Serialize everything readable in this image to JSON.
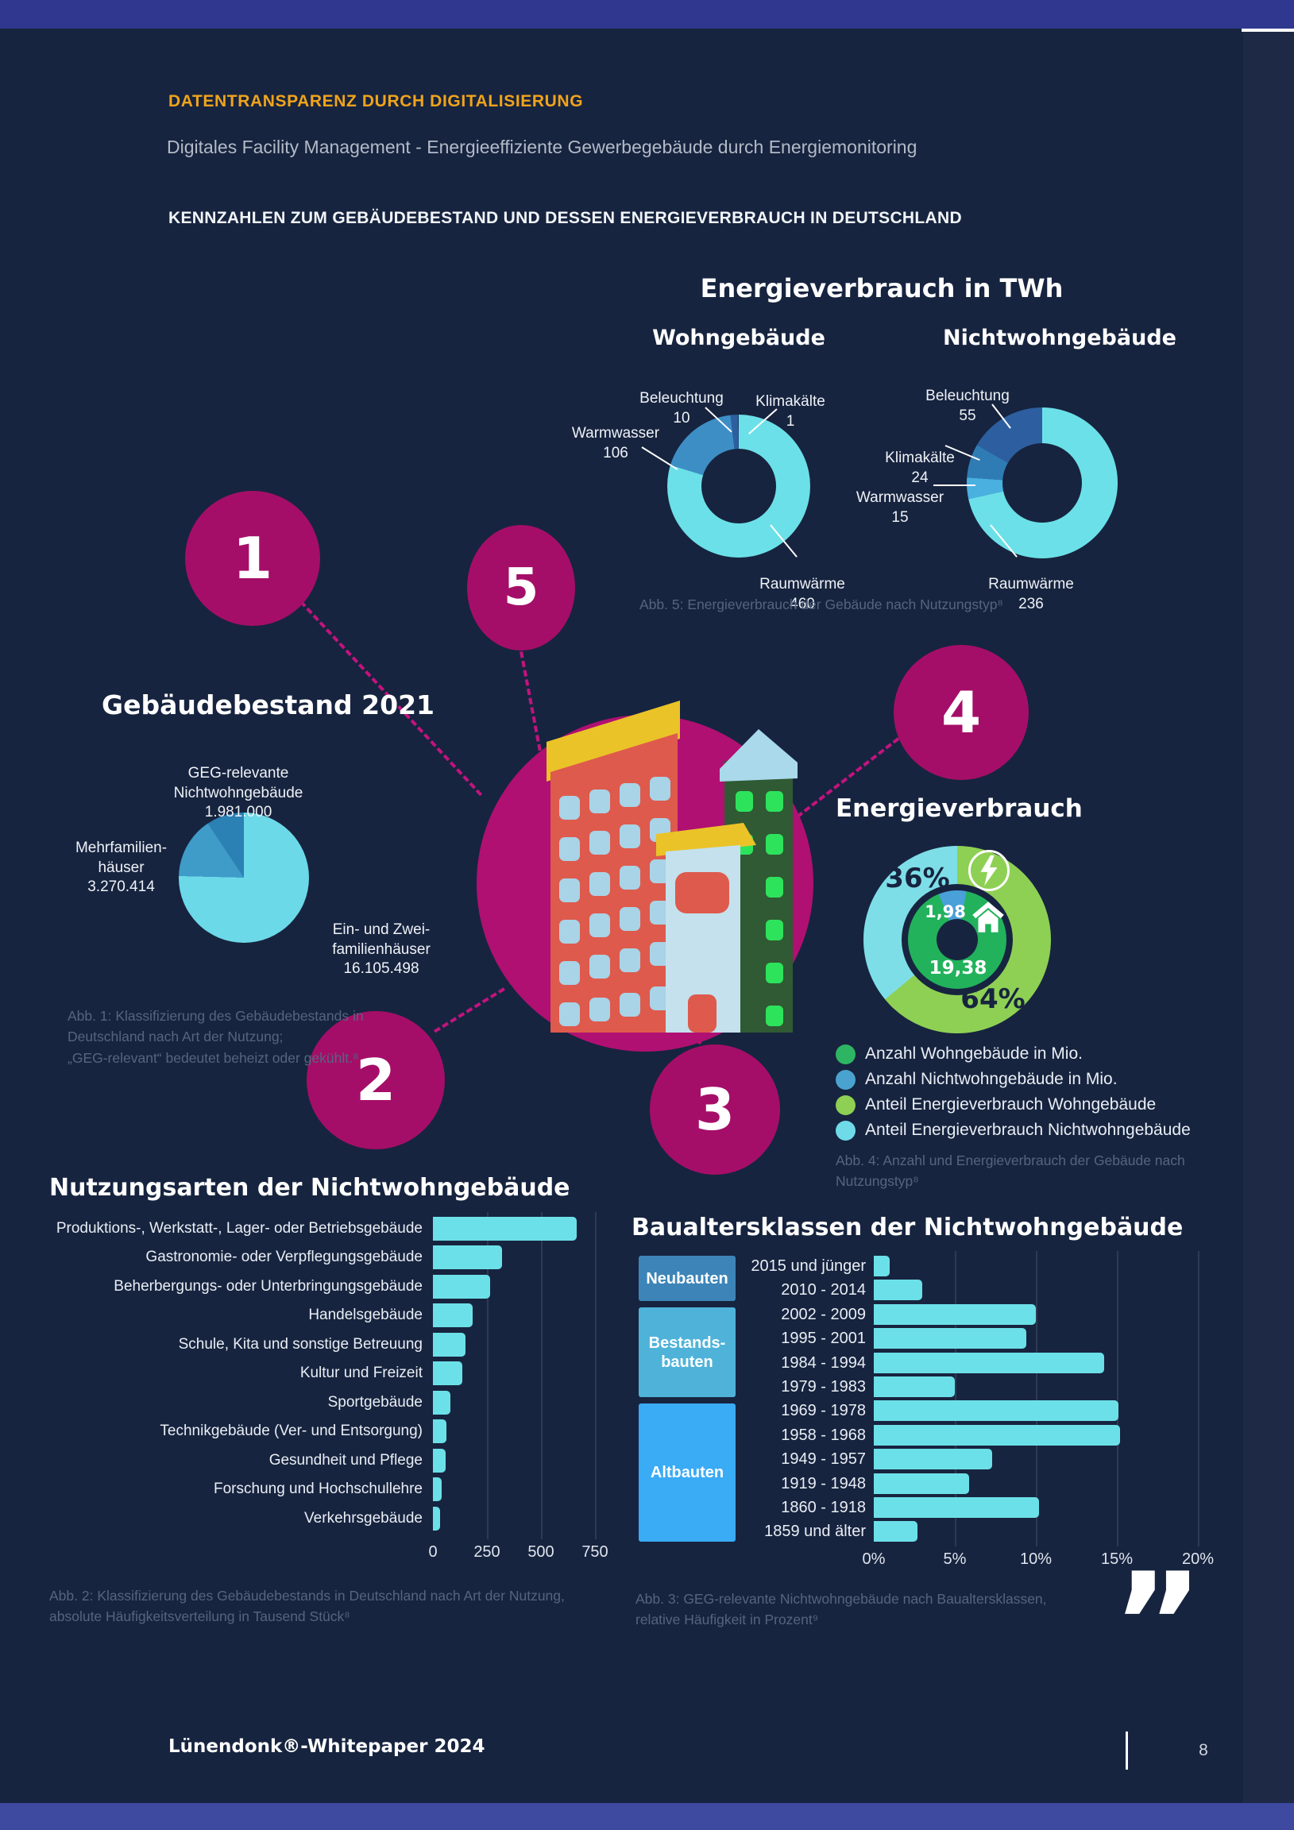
{
  "page": {
    "kicker": "DATENTRANSPARENZ DURCH DIGITALISIERUNG",
    "subtitle": "Digitales Facility Management - Energieeffiziente Gewerbegebäude durch Energiemonitoring",
    "section_title": "KENNZAHLEN ZUM GEBÄUDEBESTAND UND DESSEN ENERGIEVERBRAUCH IN DEUTSCHLAND",
    "quote_mark": "”",
    "footer": {
      "brand": "Lünendonk®-Whitepaper 2024",
      "page_number": "8"
    }
  },
  "markers": {
    "m1": "1",
    "m2": "2",
    "m3": "3",
    "m4": "4",
    "m5": "5"
  },
  "headings": {
    "energy_twh": "Energieverbrauch in TWh",
    "gebaeudebestand": "Gebäudebestand 2021",
    "energieverbrauch": "Energieverbrauch",
    "nutzungsarten": "Nutzungsarten der Nichtwohngebäude",
    "baualtersklassen": "Baualtersklassen der Nichtwohngebäude"
  },
  "captions": {
    "abb1": "Abb. 1: Klassifizierung des Gebäudebestands in\nDeutschland nach Art der Nutzung;\n„GEG-relevant“ bedeutet beheizt oder gekühlt.⁸",
    "abb2": "Abb. 2: Klassifizierung des Gebäudebestands in Deutschland nach Art der Nutzung,\nabsolute Häufigkeitsverteilung in Tausend Stück⁸",
    "abb3": "Abb. 3: GEG-relevante Nichtwohngebäude nach Baualtersklassen,\nrelative Häufigkeit in Prozent⁹",
    "abb4": "Abb. 4: Anzahl und Energieverbrauch der Gebäude nach\nNutzungstyp⁸",
    "abb5": "Abb. 5: Energieverbrauch der Gebäude nach Nutzungstyp⁸"
  },
  "chart_data": [
    {
      "id": "abb5-wohngebaeude",
      "type": "pie",
      "title": "Wohngebäude",
      "unit": "TWh",
      "categories": [
        "Raumwärme",
        "Warmwasser",
        "Beleuchtung",
        "Klimakälte"
      ],
      "values": [
        460,
        106,
        10,
        1
      ],
      "colors": [
        "#6ce0e8",
        "#3e8ec6",
        "#2d5fa0",
        "#1a3c66"
      ]
    },
    {
      "id": "abb5-nichtwohngebaeude",
      "type": "pie",
      "title": "Nichtwohngebäude",
      "unit": "TWh",
      "categories": [
        "Raumwärme",
        "Warmwasser",
        "Klimakälte",
        "Beleuchtung"
      ],
      "values": [
        236,
        15,
        24,
        55
      ],
      "colors": [
        "#6ce0e8",
        "#49b0e0",
        "#2f7cb5",
        "#2d5fa0"
      ]
    },
    {
      "id": "abb1-gebaeudebestand",
      "type": "pie",
      "title": "Gebäudebestand 2021",
      "categories": [
        "Ein- und Zweifamilienhäuser",
        "Mehrfamilienhäuser",
        "GEG-relevante Nichtwohngebäude"
      ],
      "categories_display": [
        "Ein- und Zwei-\nfamilienhäuser",
        "Mehrfamilien-\nhäuser",
        "GEG-relevante\nNichtwohngebäude"
      ],
      "values": [
        16105498,
        3270414,
        1981000
      ],
      "values_formatted": [
        "16.105.498",
        "3.270.414",
        "1.981.000"
      ],
      "colors": [
        "#6cd9e8",
        "#3f9bc8",
        "#2b80b4"
      ]
    },
    {
      "id": "abb4-energieverbrauch",
      "type": "pie",
      "title": "Energieverbrauch",
      "share_wohngebaeude": "64%",
      "share_nichtwohngebaeude": "36%",
      "anzahl_wohngebaeude_mio": "19,38",
      "anzahl_nichtwohngebaeude_mio": "1,98",
      "legend": [
        {
          "label": "Anzahl Wohngebäude in Mio.",
          "color": "#2eb563"
        },
        {
          "label": "Anzahl Nichtwohngebäude in Mio.",
          "color": "#4aa3cf"
        },
        {
          "label": "Anteil Energieverbrauch Wohngebäude",
          "color": "#8ed054"
        },
        {
          "label": "Anteil Energieverbrauch Nichtwohngebäude",
          "color": "#6fdbe8"
        }
      ]
    },
    {
      "id": "abb2-nutzungsarten",
      "type": "bar",
      "title": "Nutzungsarten der Nichtwohngebäude",
      "unit": "Tausend Stück",
      "xlim": [
        0,
        750
      ],
      "ticks": [
        "0",
        "250",
        "500",
        "750"
      ],
      "categories": [
        "Produktions-, Werkstatt-, Lager- oder Betriebsgebäude",
        "Gastronomie- oder Verpflegungsgebäude",
        "Beherbergungs- oder Unterbringungsgebäude",
        "Handelsgebäude",
        "Schule, Kita und sonstige Betreuung",
        "Kultur und Freizeit",
        "Sportgebäude",
        "Technikgebäude (Ver- und Entsorgung)",
        "Gesundheit und Pflege",
        "Forschung und Hochschullehre",
        "Verkehrsgebäude"
      ],
      "values": [
        665,
        320,
        265,
        185,
        150,
        135,
        80,
        62,
        60,
        40,
        33
      ]
    },
    {
      "id": "abb3-baualtersklassen",
      "type": "bar",
      "title": "Baualtersklassen der Nichtwohngebäude",
      "unit": "Prozent",
      "xlim": [
        0,
        20
      ],
      "ticks": [
        "0%",
        "5%",
        "10%",
        "15%",
        "20%"
      ],
      "groups": [
        {
          "label": "Neubauten"
        },
        {
          "label": "Bestands-\nbauten"
        },
        {
          "label": "Altbauten"
        }
      ],
      "categories": [
        "2015 und jünger",
        "2010 - 2014",
        "2002 - 2009",
        "1995 - 2001",
        "1984 - 1994",
        "1979 - 1983",
        "1969 - 1978",
        "1958 - 1968",
        "1949 - 1957",
        "1919 - 1948",
        "1860 - 1918",
        "1859 und älter"
      ],
      "values": [
        1,
        3,
        10,
        9.4,
        14.2,
        5,
        15.1,
        15.2,
        7.3,
        5.9,
        10.2,
        2.7
      ]
    }
  ]
}
